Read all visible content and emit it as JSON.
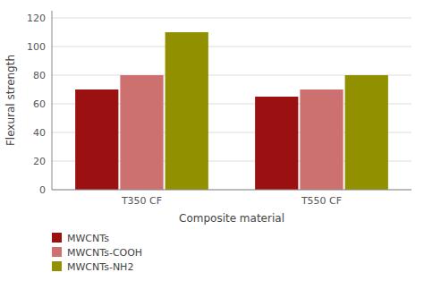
{
  "chart_data": {
    "type": "bar",
    "categories": [
      "T350 CF",
      "T550 CF"
    ],
    "series": [
      {
        "name": "MWCNTs",
        "color": "#9b1010",
        "values": [
          70,
          65
        ]
      },
      {
        "name": "MWCNTs-COOH",
        "color": "#cc7070",
        "values": [
          80,
          70
        ]
      },
      {
        "name": "MWCNTs-NH2",
        "color": "#909000",
        "values": [
          110,
          80
        ]
      }
    ],
    "xlabel": "Composite material",
    "ylabel": "Flexural strength",
    "ylim": [
      0,
      125
    ],
    "yticks": [
      0,
      20,
      40,
      60,
      80,
      100,
      120
    ],
    "grid": true,
    "legend": "bottom"
  }
}
